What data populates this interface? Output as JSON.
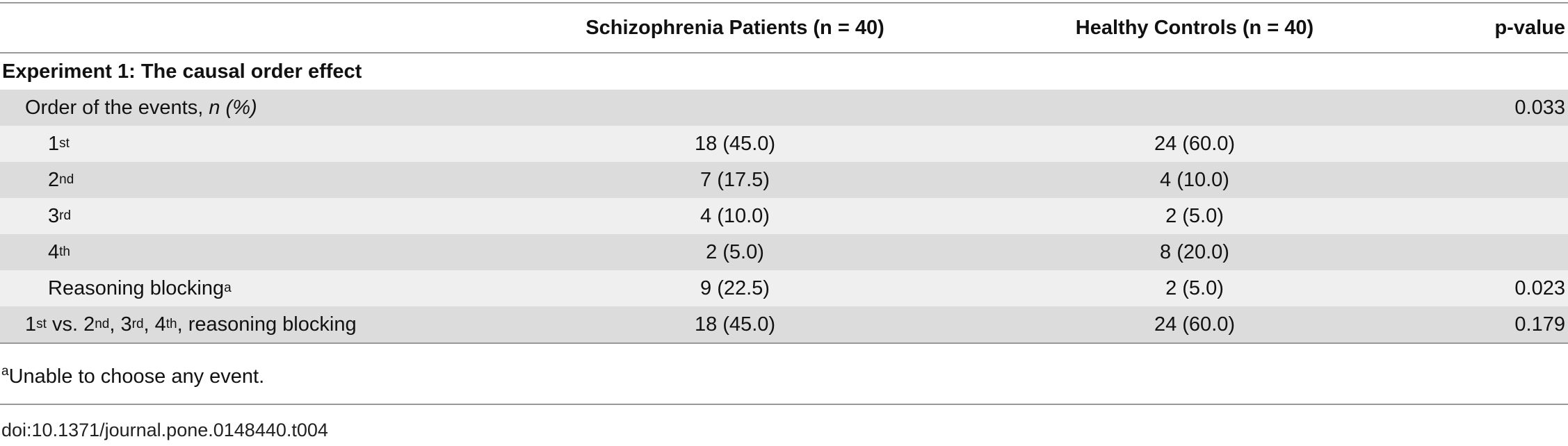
{
  "table": {
    "columns": [
      "Schizophrenia Patients (n = 40)",
      "Healthy Controls (n = 40)",
      "p-value"
    ],
    "sections": [
      {
        "title": "Experiment 1: The causal order effect",
        "rows": [
          {
            "label": [
              {
                "text": "Order of the events, "
              },
              {
                "italic": "n (%)"
              }
            ],
            "cells": [
              null,
              null,
              "0.033"
            ],
            "rows": [
              {
                "label": [
                  {
                    "text": "1"
                  },
                  {
                    "sup": "st"
                  }
                ],
                "cells": [
                  "18 (45.0)",
                  "24 (60.0)",
                  null
                ]
              },
              {
                "label": [
                  {
                    "text": "2"
                  },
                  {
                    "sup": "nd"
                  }
                ],
                "cells": [
                  "7 (17.5)",
                  "4 (10.0)",
                  null
                ]
              },
              {
                "label": [
                  {
                    "text": "3"
                  },
                  {
                    "sup": "rd"
                  }
                ],
                "cells": [
                  "4 (10.0)",
                  "2 (5.0)",
                  null
                ]
              },
              {
                "label": [
                  {
                    "text": "4"
                  },
                  {
                    "sup": "th"
                  }
                ],
                "cells": [
                  "2 (5.0)",
                  "8 (20.0)",
                  null
                ]
              },
              {
                "label": [
                  {
                    "text": "Reasoning blocking"
                  },
                  {
                    "sup": "a"
                  }
                ],
                "cells": [
                  "9 (22.5)",
                  "2 (5.0)",
                  "0.023"
                ]
              }
            ]
          },
          {
            "label": [
              {
                "text": "1"
              },
              {
                "sup": "st"
              },
              {
                "text": " vs. 2"
              },
              {
                "sup": "nd"
              },
              {
                "text": ", 3"
              },
              {
                "sup": "rd"
              },
              {
                "text": ", 4"
              },
              {
                "sup": "th"
              },
              {
                "text": ", reasoning blocking"
              }
            ],
            "cells": [
              "18 (45.0)",
              "24 (60.0)",
              "0.179"
            ]
          }
        ]
      }
    ],
    "footnote": [
      {
        "sup": "a"
      },
      {
        "text": "Unable to choose any event."
      }
    ],
    "doi": "doi:10.1371/journal.pone.0148440.t004"
  }
}
